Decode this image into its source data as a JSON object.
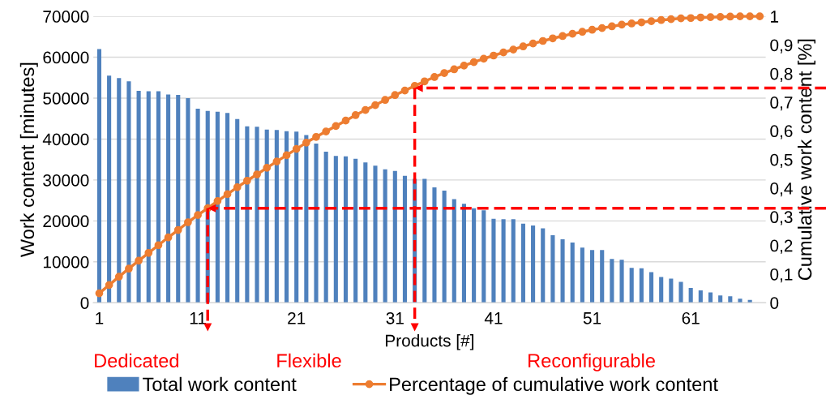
{
  "chart_data": {
    "type": "bar",
    "xlabel": "Products [#]",
    "ylabel": "Work content [minutes]",
    "y2label": "Cumulative work content [%]",
    "categories": [
      "1",
      null,
      null,
      null,
      null,
      null,
      null,
      null,
      null,
      null,
      "11",
      null,
      null,
      null,
      null,
      null,
      null,
      null,
      null,
      null,
      "21",
      null,
      null,
      null,
      null,
      null,
      null,
      null,
      null,
      null,
      "31",
      null,
      null,
      null,
      null,
      null,
      null,
      null,
      null,
      null,
      "41",
      null,
      null,
      null,
      null,
      null,
      null,
      null,
      null,
      null,
      "51",
      null,
      null,
      null,
      null,
      null,
      null,
      null,
      null,
      null,
      "61",
      null,
      null,
      null,
      null,
      null,
      null,
      null
    ],
    "series": [
      {
        "name": "Total work content",
        "color": "#4f81bd",
        "values": [
          62000,
          55500,
          54900,
          54100,
          51800,
          51700,
          51700,
          50900,
          50800,
          50000,
          47400,
          46900,
          46700,
          46400,
          44900,
          43100,
          43000,
          42300,
          42200,
          41900,
          41800,
          41000,
          38900,
          36900,
          35900,
          35800,
          35200,
          34300,
          33500,
          32600,
          32200,
          31000,
          30300,
          30300,
          28200,
          27400,
          25300,
          24200,
          23100,
          22600,
          20500,
          20400,
          20400,
          19300,
          18900,
          18200,
          16500,
          15500,
          14700,
          13500,
          12900,
          12900,
          10700,
          10500,
          8500,
          8400,
          7500,
          6300,
          5900,
          5100,
          3600,
          3000,
          2500,
          1800,
          1600,
          1000,
          700,
          0
        ]
      },
      {
        "name": "Percentage of cumulative work content",
        "type": "line",
        "axis": "y2",
        "color": "#ed7d31",
        "marker": "circle",
        "values": [
          0.033,
          0.062,
          0.091,
          0.119,
          0.147,
          0.174,
          0.201,
          0.228,
          0.254,
          0.281,
          0.306,
          0.33,
          0.355,
          0.379,
          0.403,
          0.426,
          0.448,
          0.471,
          0.493,
          0.515,
          0.537,
          0.559,
          0.579,
          0.598,
          0.617,
          0.636,
          0.655,
          0.673,
          0.69,
          0.708,
          0.725,
          0.741,
          0.757,
          0.773,
          0.788,
          0.802,
          0.815,
          0.828,
          0.84,
          0.852,
          0.863,
          0.874,
          0.884,
          0.895,
          0.905,
          0.914,
          0.923,
          0.931,
          0.939,
          0.946,
          0.953,
          0.959,
          0.965,
          0.971,
          0.975,
          0.979,
          0.983,
          0.987,
          0.99,
          0.993,
          0.994,
          0.996,
          0.997,
          0.998,
          0.999,
          1,
          1,
          1
        ]
      }
    ],
    "ylim": [
      0,
      70000
    ],
    "yticks": [
      0,
      10000,
      20000,
      30000,
      40000,
      50000,
      60000,
      70000
    ],
    "y2lim": [
      0,
      1
    ],
    "y2ticks": [
      0,
      {
        "value": 0.1,
        "label": "0,1"
      },
      {
        "value": 0.2,
        "label": "0,2"
      },
      {
        "value": 0.3,
        "label": "0,3"
      },
      {
        "value": 0.4,
        "label": "0,4"
      },
      {
        "value": 0.5,
        "label": "0,5"
      },
      {
        "value": 0.6,
        "label": "0,6"
      },
      {
        "value": 0.7,
        "label": "0,7"
      },
      {
        "value": 0.8,
        "label": "0,8"
      },
      {
        "value": 0.9,
        "label": "0,9"
      },
      1
    ],
    "ref_lines": [
      {
        "axis": "y2",
        "value": 0.33,
        "color": "#ff0000",
        "line_style": "dashed"
      },
      {
        "axis": "y2",
        "value": 0.75,
        "color": "#ff0000",
        "line_style": "dashed"
      }
    ],
    "annotations": [
      "Dedicated",
      "Flexible",
      "Reconfigurable"
    ],
    "grid": "y",
    "legend": "bottom"
  }
}
